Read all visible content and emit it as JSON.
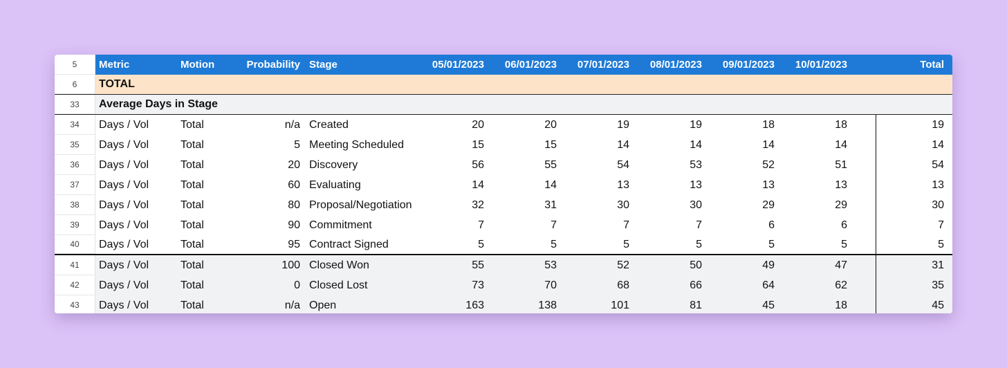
{
  "header": {
    "row_number": "5",
    "columns": [
      "Metric",
      "Motion",
      "Probability",
      "Stage",
      "05/01/2023",
      "06/01/2023",
      "07/01/2023",
      "08/01/2023",
      "09/01/2023",
      "10/01/2023",
      "Total"
    ]
  },
  "total_row": {
    "row_number": "6",
    "label": "TOTAL"
  },
  "section_row": {
    "row_number": "33",
    "label": "Average Days in Stage"
  },
  "rows": [
    {
      "n": "34",
      "metric": "Days / Vol",
      "motion": "Total",
      "prob": "n/a",
      "stage": "Created",
      "v": [
        "20",
        "20",
        "19",
        "19",
        "18",
        "18"
      ],
      "total": "19"
    },
    {
      "n": "35",
      "metric": "Days / Vol",
      "motion": "Total",
      "prob": "5",
      "stage": "Meeting Scheduled",
      "v": [
        "15",
        "15",
        "14",
        "14",
        "14",
        "14"
      ],
      "total": "14"
    },
    {
      "n": "36",
      "metric": "Days / Vol",
      "motion": "Total",
      "prob": "20",
      "stage": "Discovery",
      "v": [
        "56",
        "55",
        "54",
        "53",
        "52",
        "51"
      ],
      "total": "54"
    },
    {
      "n": "37",
      "metric": "Days / Vol",
      "motion": "Total",
      "prob": "60",
      "stage": "Evaluating",
      "v": [
        "14",
        "14",
        "13",
        "13",
        "13",
        "13"
      ],
      "total": "13"
    },
    {
      "n": "38",
      "metric": "Days / Vol",
      "motion": "Total",
      "prob": "80",
      "stage": "Proposal/Negotiation",
      "v": [
        "32",
        "31",
        "30",
        "30",
        "29",
        "29"
      ],
      "total": "30"
    },
    {
      "n": "39",
      "metric": "Days / Vol",
      "motion": "Total",
      "prob": "90",
      "stage": "Commitment",
      "v": [
        "7",
        "7",
        "7",
        "7",
        "6",
        "6"
      ],
      "total": "7"
    },
    {
      "n": "40",
      "metric": "Days / Vol",
      "motion": "Total",
      "prob": "95",
      "stage": "Contract Signed",
      "v": [
        "5",
        "5",
        "5",
        "5",
        "5",
        "5"
      ],
      "total": "5"
    },
    {
      "n": "41",
      "metric": "Days / Vol",
      "motion": "Total",
      "prob": "100",
      "stage": "Closed Won",
      "v": [
        "55",
        "53",
        "52",
        "50",
        "49",
        "47"
      ],
      "total": "31"
    },
    {
      "n": "42",
      "metric": "Days / Vol",
      "motion": "Total",
      "prob": "0",
      "stage": "Closed Lost",
      "v": [
        "73",
        "70",
        "68",
        "66",
        "64",
        "62"
      ],
      "total": "35"
    },
    {
      "n": "43",
      "metric": "Days / Vol",
      "motion": "Total",
      "prob": "n/a",
      "stage": "Open",
      "v": [
        "163",
        "138",
        "101",
        "81",
        "45",
        "18"
      ],
      "total": "45"
    }
  ],
  "colors": {
    "header_bg": "#1e7ad6",
    "total_row_bg": "#fde4c8",
    "section_bg": "#f1f2f4",
    "page_bg": "#dbc2f7"
  }
}
